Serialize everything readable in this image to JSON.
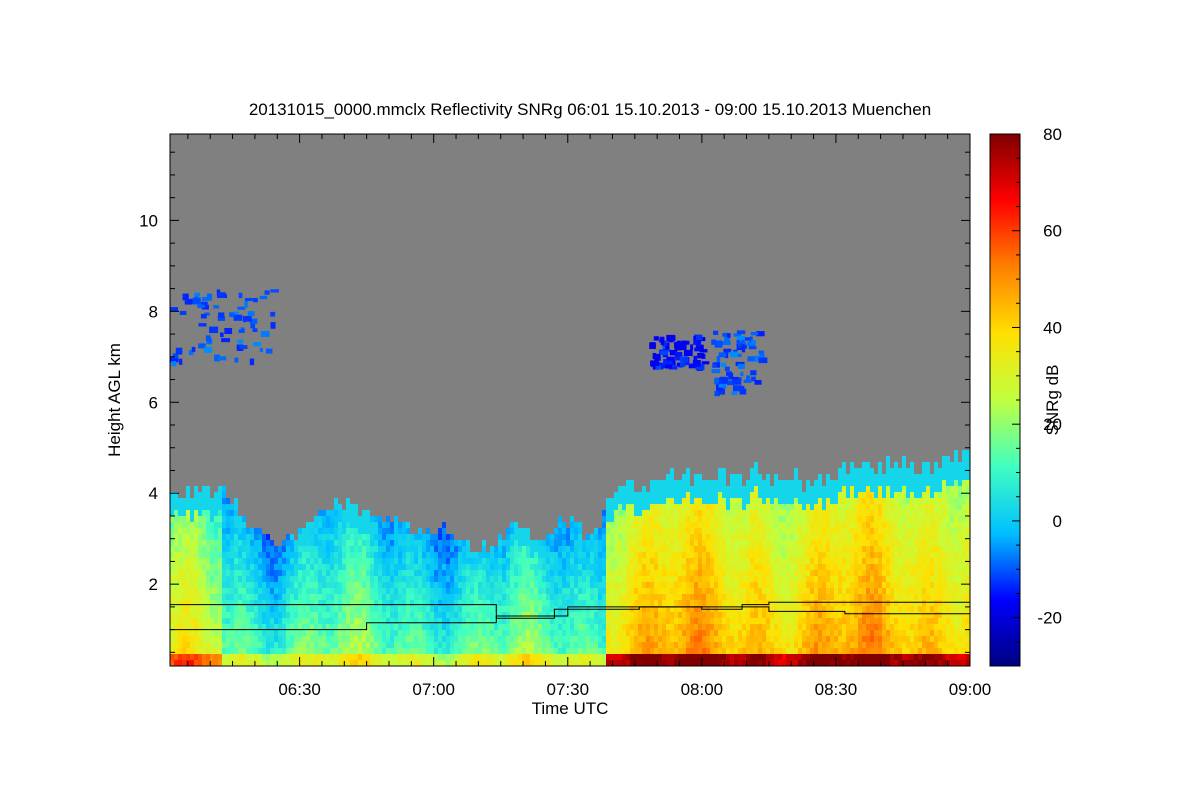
{
  "chart_data": {
    "type": "heatmap",
    "title": "20131015_0000.mmclx Reflectivity SNRg   06:01 15.10.2013 - 09:00 15.10.2013 Muenchen",
    "xlabel": "Time UTC",
    "ylabel": "Height AGL km",
    "colorbar_label": "SNRg dB",
    "xlim": [
      361,
      540
    ],
    "ylim": [
      0.2,
      11.9
    ],
    "x_ticks": [
      {
        "value": 390,
        "label": "06:30"
      },
      {
        "value": 420,
        "label": "07:00"
      },
      {
        "value": 450,
        "label": "07:30"
      },
      {
        "value": 480,
        "label": "08:00"
      },
      {
        "value": 510,
        "label": "08:30"
      },
      {
        "value": 540,
        "label": "09:00"
      }
    ],
    "y_ticks": [
      {
        "value": 2,
        "label": "2"
      },
      {
        "value": 4,
        "label": "4"
      },
      {
        "value": 6,
        "label": "6"
      },
      {
        "value": 8,
        "label": "8"
      },
      {
        "value": 10,
        "label": "10"
      }
    ],
    "colorbar": {
      "range": [
        -30,
        80
      ],
      "ticks": [
        {
          "value": -20,
          "label": "-20"
        },
        {
          "value": 0,
          "label": "0"
        },
        {
          "value": 20,
          "label": "20"
        },
        {
          "value": 40,
          "label": "40"
        },
        {
          "value": 60,
          "label": "60"
        },
        {
          "value": 80,
          "label": "80"
        }
      ],
      "colormap": [
        "#000080",
        "#0000ff",
        "#00c0ff",
        "#40ffc0",
        "#c0ff40",
        "#ffe000",
        "#ff8000",
        "#ff0000",
        "#800000"
      ]
    },
    "background_color": "#808080",
    "echo_top_km": [
      [
        361,
        4.0
      ],
      [
        365,
        4.1
      ],
      [
        370,
        4.1
      ],
      [
        375,
        3.9
      ],
      [
        378,
        3.4
      ],
      [
        382,
        3.1
      ],
      [
        386,
        3.0
      ],
      [
        390,
        3.2
      ],
      [
        394,
        3.6
      ],
      [
        398,
        3.9
      ],
      [
        402,
        3.7
      ],
      [
        406,
        3.4
      ],
      [
        410,
        3.5
      ],
      [
        414,
        3.3
      ],
      [
        418,
        3.1
      ],
      [
        422,
        3.3
      ],
      [
        426,
        3.0
      ],
      [
        430,
        2.8
      ],
      [
        434,
        3.1
      ],
      [
        438,
        3.3
      ],
      [
        442,
        3.1
      ],
      [
        446,
        3.2
      ],
      [
        450,
        3.5
      ],
      [
        454,
        3.1
      ],
      [
        457,
        3.4
      ],
      [
        460,
        4.1
      ],
      [
        464,
        4.3
      ],
      [
        468,
        4.2
      ],
      [
        472,
        4.4
      ],
      [
        476,
        4.5
      ],
      [
        480,
        4.3
      ],
      [
        484,
        4.5
      ],
      [
        488,
        4.3
      ],
      [
        492,
        4.6
      ],
      [
        496,
        4.4
      ],
      [
        500,
        4.5
      ],
      [
        504,
        4.2
      ],
      [
        508,
        4.4
      ],
      [
        512,
        4.6
      ],
      [
        516,
        4.7
      ],
      [
        520,
        4.6
      ],
      [
        524,
        4.8
      ],
      [
        528,
        4.6
      ],
      [
        532,
        4.7
      ],
      [
        536,
        4.9
      ],
      [
        540,
        4.9
      ]
    ],
    "cloud_layers": [
      {
        "x": [
          361,
          384
        ],
        "y": [
          6.9,
          8.5
        ],
        "intensity_dB": -10
      },
      {
        "x": [
          482,
          493
        ],
        "y": [
          6.2,
          7.6
        ],
        "intensity_dB": -10
      },
      {
        "x": [
          468,
          480
        ],
        "y": [
          6.8,
          7.5
        ],
        "intensity_dB": -15
      }
    ],
    "boundary_layer_lines": [
      {
        "name": "upper",
        "points": [
          [
            361,
            1.55
          ],
          [
            420,
            1.55
          ],
          [
            434,
            1.55
          ],
          [
            434,
            1.25
          ],
          [
            447,
            1.25
          ],
          [
            447,
            1.45
          ],
          [
            466,
            1.45
          ],
          [
            466,
            1.5
          ],
          [
            480,
            1.5
          ],
          [
            480,
            1.45
          ],
          [
            489,
            1.45
          ],
          [
            489,
            1.55
          ],
          [
            495,
            1.55
          ],
          [
            495,
            1.6
          ],
          [
            540,
            1.6
          ]
        ]
      },
      {
        "name": "lower",
        "points": [
          [
            361,
            1.0
          ],
          [
            405,
            1.0
          ],
          [
            405,
            1.15
          ],
          [
            434,
            1.15
          ],
          [
            434,
            1.3
          ],
          [
            450,
            1.3
          ],
          [
            450,
            1.5
          ],
          [
            495,
            1.5
          ],
          [
            495,
            1.4
          ],
          [
            512,
            1.4
          ],
          [
            512,
            1.35
          ],
          [
            540,
            1.35
          ]
        ]
      }
    ]
  }
}
